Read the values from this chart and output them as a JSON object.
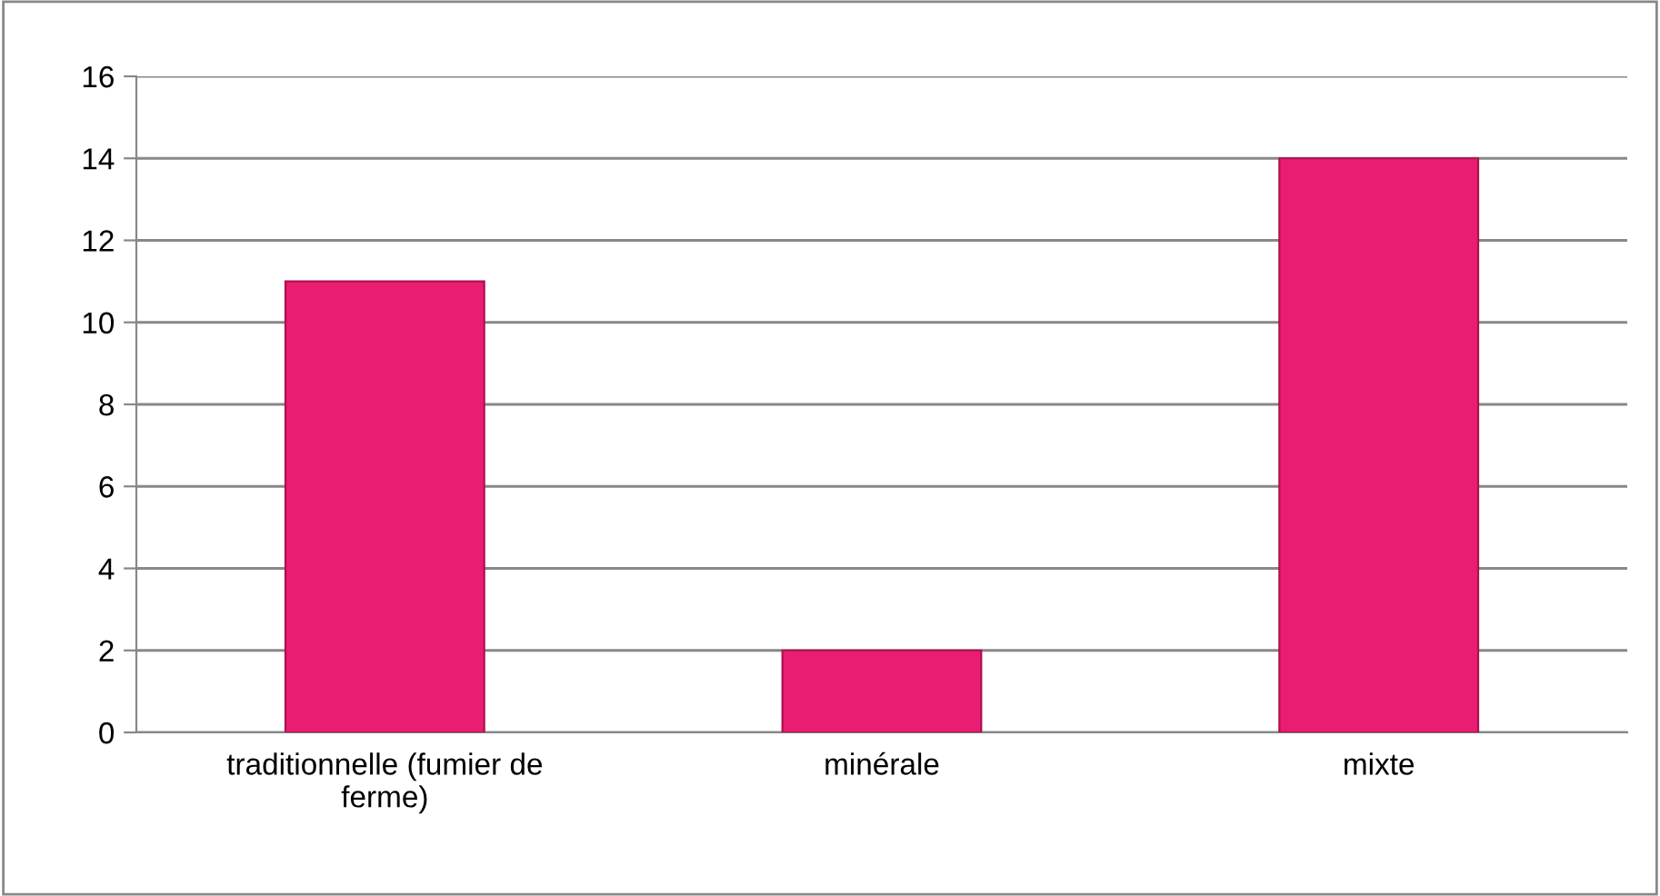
{
  "chart_data": {
    "type": "bar",
    "categories": [
      "traditionnelle (fumier de\nferme)",
      "minérale",
      "mixte"
    ],
    "values": [
      11,
      2,
      14
    ],
    "color": "#e91e73",
    "ylim": [
      0,
      16
    ],
    "yticks": [
      0,
      2,
      4,
      6,
      8,
      10,
      12,
      14,
      16
    ],
    "grid": "y",
    "legend": false
  }
}
